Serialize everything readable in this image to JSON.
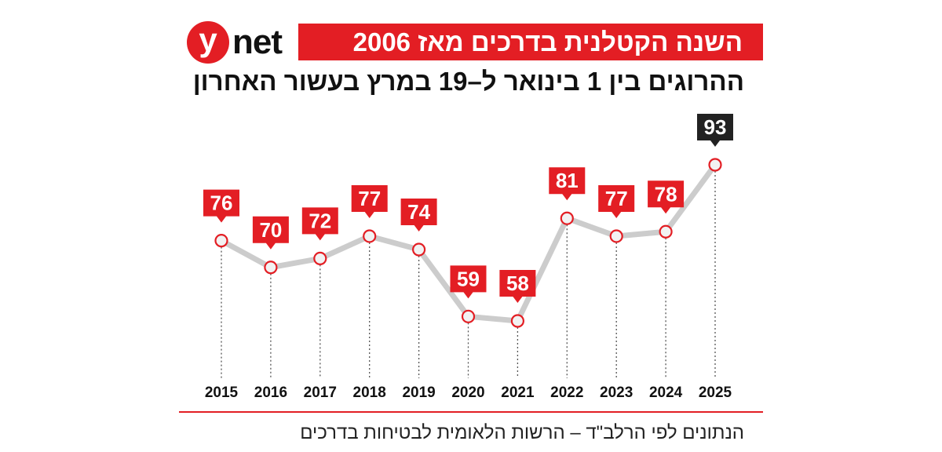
{
  "logo": {
    "letter": "y",
    "text": "net"
  },
  "title": "השנה הקטלנית בדרכים מאז 2006",
  "subtitle": "ההרוגים בין 1 בינואר ל–19 במרץ בעשור האחרון",
  "source": "הנתונים לפי הרלב\"ד – הרשות הלאומית לבטיחות בדרכים",
  "colors": {
    "accent": "#e31e24",
    "highlight": "#222222",
    "line": "#cccccc",
    "text": "#111111"
  },
  "chart_data": {
    "type": "line",
    "title": "השנה הקטלנית בדרכים מאז 2006",
    "subtitle": "ההרוגים בין 1 בינואר ל–19 במרץ בעשור האחרון",
    "xlabel": "",
    "ylabel": "",
    "x": [
      "2015",
      "2016",
      "2017",
      "2018",
      "2019",
      "2020",
      "2021",
      "2022",
      "2023",
      "2024",
      "2025"
    ],
    "values": [
      76,
      70,
      72,
      77,
      74,
      59,
      58,
      81,
      77,
      78,
      93
    ],
    "highlight_index": 10,
    "ylim": [
      58,
      93
    ],
    "grid": false,
    "legend": "none"
  }
}
